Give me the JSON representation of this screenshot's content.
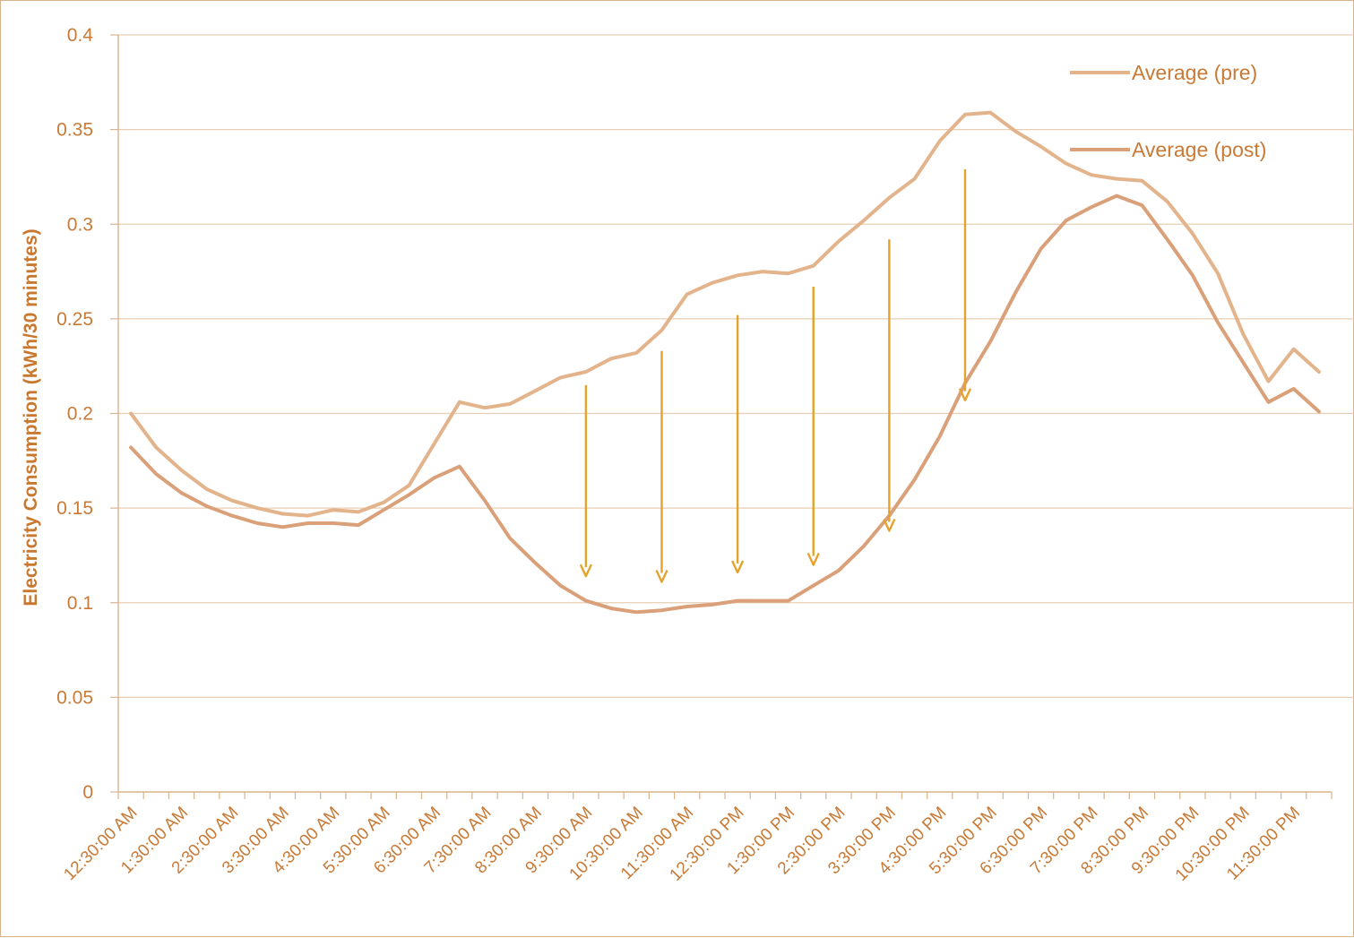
{
  "chart_data": {
    "type": "line",
    "title": "",
    "xlabel": "",
    "ylabel": "Electricity Consumption (kWh/30 minutes)",
    "ylim": [
      0,
      0.4
    ],
    "yticks": [
      "0",
      "0.05",
      "0.1",
      "0.15",
      "0.2",
      "0.25",
      "0.3",
      "0.35",
      "0.4"
    ],
    "grid": "horizontal",
    "legend_position": "top-right",
    "x_tick_labels": [
      "12:30:00 AM",
      "1:30:00 AM",
      "2:30:00 AM",
      "3:30:00 AM",
      "4:30:00 AM",
      "5:30:00 AM",
      "6:30:00 AM",
      "7:30:00 AM",
      "8:30:00 AM",
      "9:30:00 AM",
      "10:30:00 AM",
      "11:30:00 AM",
      "12:30:00 PM",
      "1:30:00 PM",
      "2:30:00 PM",
      "3:30:00 PM",
      "4:30:00 PM",
      "5:30:00 PM",
      "6:30:00 PM",
      "7:30:00 PM",
      "8:30:00 PM",
      "9:30:00 PM",
      "10:30:00 PM",
      "11:30:00 PM"
    ],
    "x_count": 48,
    "series": [
      {
        "name": "Average (pre)",
        "color": "#e3b48c",
        "values": [
          0.2,
          0.182,
          0.17,
          0.16,
          0.154,
          0.15,
          0.147,
          0.146,
          0.149,
          0.148,
          0.153,
          0.162,
          0.184,
          0.206,
          0.203,
          0.205,
          0.212,
          0.219,
          0.222,
          0.229,
          0.232,
          0.244,
          0.263,
          0.269,
          0.273,
          0.275,
          0.274,
          0.278,
          0.291,
          0.302,
          0.314,
          0.324,
          0.344,
          0.358,
          0.359,
          0.349,
          0.341,
          0.332,
          0.326,
          0.324,
          0.323,
          0.312,
          0.295,
          0.274,
          0.242,
          0.217,
          0.234,
          0.222
        ]
      },
      {
        "name": "Average (post)",
        "color": "#d9a07a",
        "values": [
          0.182,
          0.168,
          0.158,
          0.151,
          0.146,
          0.142,
          0.14,
          0.142,
          0.142,
          0.141,
          0.149,
          0.157,
          0.166,
          0.172,
          0.154,
          0.134,
          0.121,
          0.109,
          0.101,
          0.097,
          0.095,
          0.096,
          0.098,
          0.099,
          0.101,
          0.101,
          0.101,
          0.109,
          0.117,
          0.13,
          0.146,
          0.165,
          0.188,
          0.216,
          0.238,
          0.264,
          0.287,
          0.302,
          0.309,
          0.315,
          0.31,
          0.292,
          0.273,
          0.248,
          0.227,
          0.206,
          0.213,
          0.201
        ]
      }
    ],
    "arrows": {
      "color": "#e3a32c",
      "items": [
        {
          "x_index": 18,
          "from": 0.215,
          "to": 0.114
        },
        {
          "x_index": 21,
          "from": 0.233,
          "to": 0.111
        },
        {
          "x_index": 24,
          "from": 0.252,
          "to": 0.116
        },
        {
          "x_index": 27,
          "from": 0.267,
          "to": 0.12
        },
        {
          "x_index": 30,
          "from": 0.292,
          "to": 0.138
        },
        {
          "x_index": 33,
          "from": 0.329,
          "to": 0.207
        }
      ]
    },
    "colors": {
      "axis": "#d8b48c",
      "grid": "#e8cfb3",
      "text": "#c87a36",
      "ylabel": "#c8782f"
    }
  }
}
